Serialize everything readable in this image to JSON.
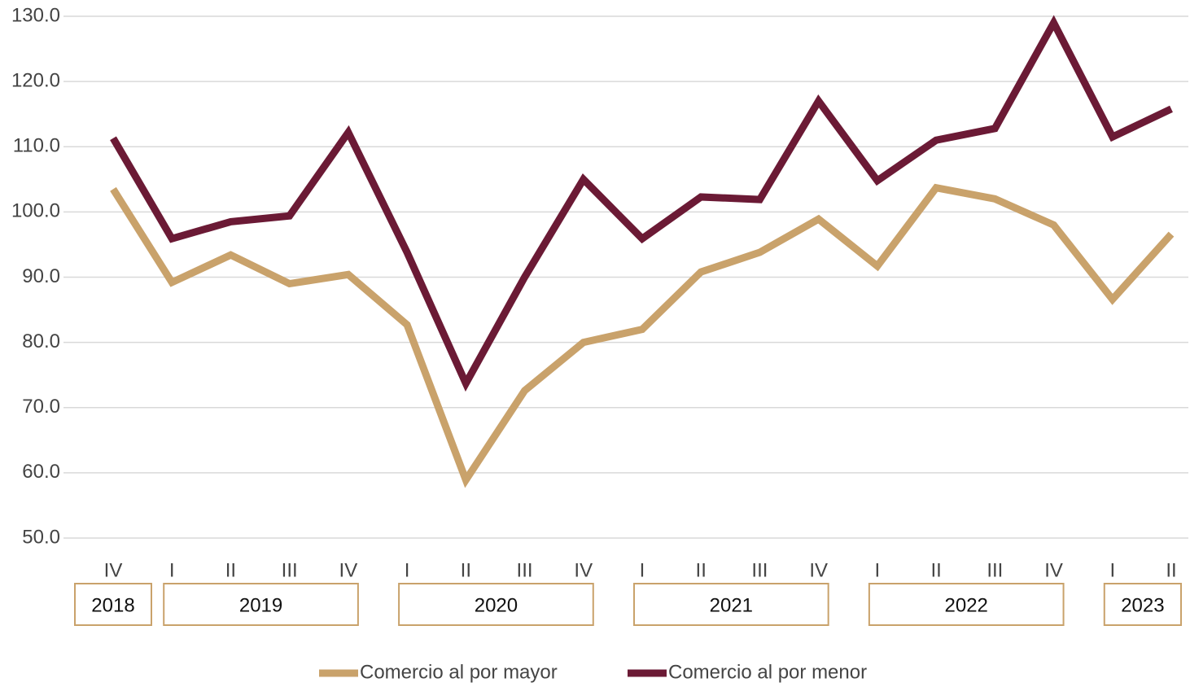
{
  "chart_data": {
    "type": "line",
    "categories": [
      "IV",
      "I",
      "II",
      "III",
      "IV",
      "I",
      "II",
      "III",
      "IV",
      "I",
      "II",
      "III",
      "IV",
      "I",
      "II",
      "III",
      "IV",
      "I",
      "II"
    ],
    "years": [
      "2018",
      "2019",
      null,
      null,
      null,
      "2020",
      null,
      null,
      null,
      "2021",
      null,
      null,
      null,
      "2022",
      null,
      null,
      null,
      "2023",
      null
    ],
    "series": [
      {
        "name": "Comercio al por mayor",
        "color": "#c9a26b",
        "values": [
          103.5,
          89.2,
          93.4,
          89.0,
          90.4,
          82.7,
          58.9,
          72.6,
          80.0,
          82.0,
          90.8,
          93.8,
          98.9,
          91.7,
          103.7,
          102.0,
          98.0,
          86.6,
          96.6
        ]
      },
      {
        "name": "Comercio al por menor",
        "color": "#6b1a35",
        "values": [
          111.3,
          95.9,
          98.5,
          99.4,
          112.2,
          93.8,
          73.7,
          90.0,
          105.0,
          95.9,
          102.3,
          101.9,
          117.0,
          104.8,
          111.0,
          112.8,
          129.0,
          111.5,
          115.8
        ]
      }
    ],
    "ylim": [
      50,
      130
    ],
    "yticks": [
      {
        "value": 50,
        "label": "50.0"
      },
      {
        "value": 60,
        "label": "60.0"
      },
      {
        "value": 70,
        "label": "70.0"
      },
      {
        "value": 80,
        "label": "80.0"
      },
      {
        "value": 90,
        "label": "90.0"
      },
      {
        "value": 100,
        "label": "100.0"
      },
      {
        "value": 110,
        "label": "110.0"
      },
      {
        "value": 120,
        "label": "120.0"
      },
      {
        "value": 130,
        "label": "130.0"
      }
    ],
    "grid": true,
    "legend": "bottom"
  }
}
